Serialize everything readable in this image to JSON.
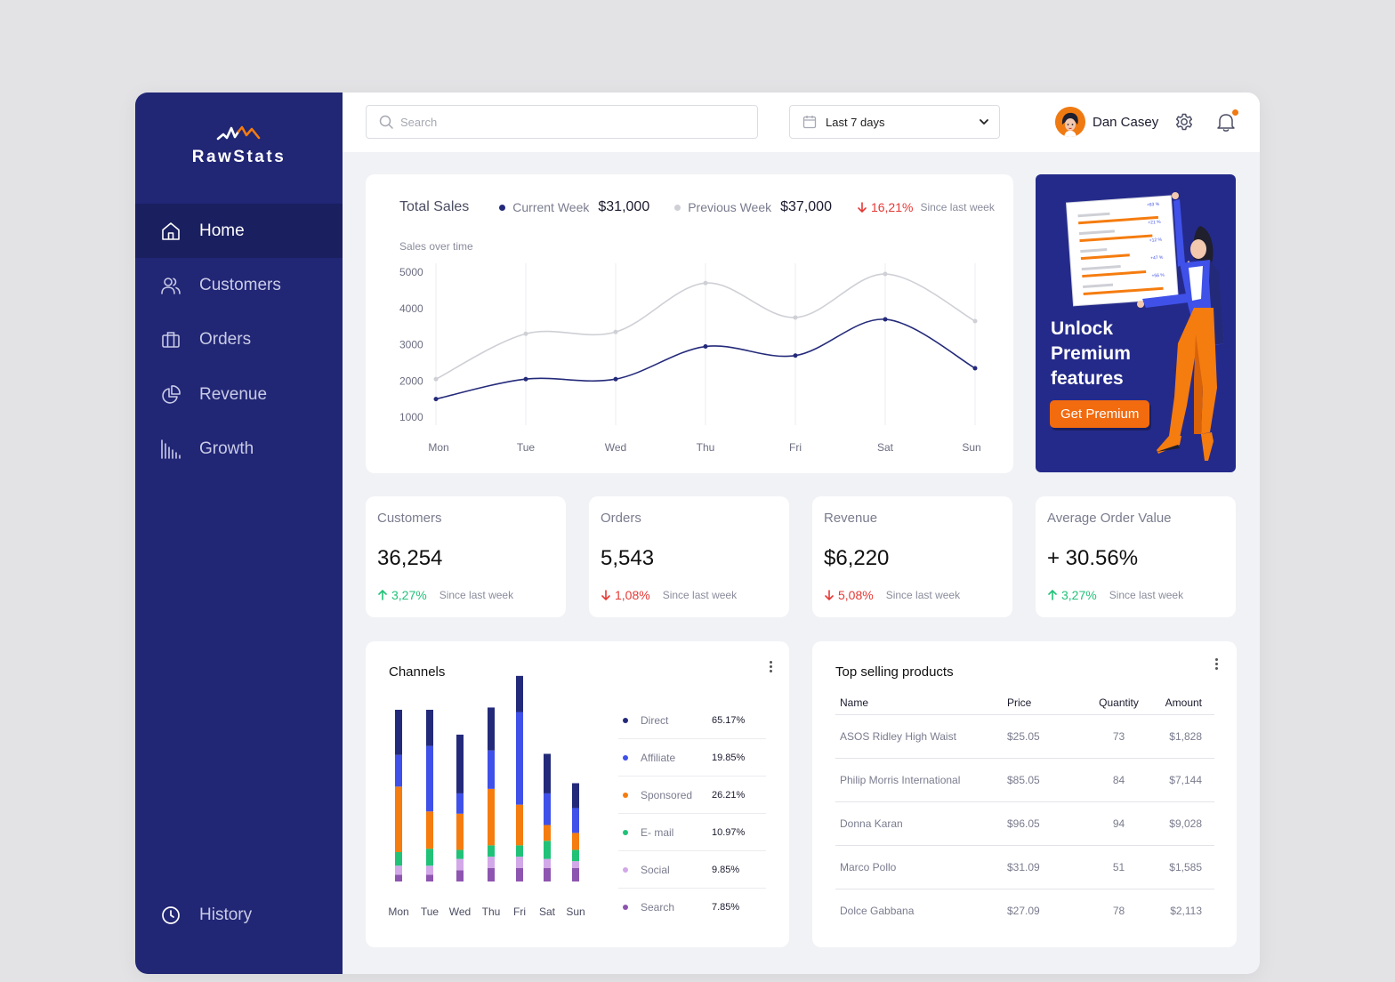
{
  "brand": {
    "name": "RawStats"
  },
  "sidebar": {
    "items": [
      {
        "label": "Home",
        "icon": "home-icon",
        "active": true
      },
      {
        "label": "Customers",
        "icon": "users-icon",
        "active": false
      },
      {
        "label": "Orders",
        "icon": "briefcase-icon",
        "active": false
      },
      {
        "label": "Revenue",
        "icon": "pie-chart-icon",
        "active": false
      },
      {
        "label": "Growth",
        "icon": "bar-chart-icon",
        "active": false
      }
    ],
    "footer_item": {
      "label": "History",
      "icon": "clock-icon"
    }
  },
  "topbar": {
    "search_placeholder": "Search",
    "date_range": "Last 7 days",
    "user_name": "Dan Casey"
  },
  "sales": {
    "title": "Total Sales",
    "current_label": "Current Week",
    "current_value": "$31,000",
    "previous_label": "Previous Week",
    "previous_value": "$37,000",
    "change": "16,21%",
    "change_direction": "down",
    "since": "Since last week",
    "subtitle": "Sales over time"
  },
  "chart_data": [
    {
      "type": "line",
      "x": [
        "Mon",
        "Tue",
        "Wed",
        "Thu",
        "Fri",
        "Sat",
        "Sun"
      ],
      "series": [
        {
          "name": "Current Week",
          "values": [
            1500,
            2050,
            2050,
            2950,
            2700,
            3700,
            2350
          ],
          "color": "#242a7a"
        },
        {
          "name": "Previous Week",
          "values": [
            2050,
            3300,
            3350,
            4700,
            3750,
            4950,
            3650
          ],
          "color": "#cfd0d6"
        }
      ],
      "yticks": [
        5000,
        4000,
        3000,
        2000,
        1000
      ],
      "ylim": [
        1000,
        5000
      ],
      "grid": "vertical"
    },
    {
      "type": "bar",
      "stacked": true,
      "categories": [
        "Mon",
        "Tue",
        "Wed",
        "Thu",
        "Fri",
        "Sat",
        "Sun"
      ],
      "series": [
        {
          "name": "Direct",
          "values": [
            40,
            32,
            52,
            38,
            32,
            35,
            22
          ],
          "color": "#242a7a"
        },
        {
          "name": "Affiliate",
          "values": [
            28,
            58,
            18,
            34,
            82,
            28,
            22
          ],
          "color": "#3f51e8"
        },
        {
          "name": "Sponsored",
          "values": [
            58,
            33,
            32,
            50,
            36,
            14,
            15
          ],
          "color": "#f57c0f"
        },
        {
          "name": "E- mail",
          "values": [
            12,
            15,
            8,
            10,
            10,
            16,
            10
          ],
          "color": "#21c278"
        },
        {
          "name": "Social",
          "values": [
            8,
            8,
            10,
            10,
            10,
            8,
            6
          ],
          "color": "#d2a8e8"
        },
        {
          "name": "Search",
          "values": [
            6,
            6,
            10,
            12,
            12,
            12,
            12
          ],
          "color": "#8e55b0"
        }
      ]
    }
  ],
  "promo": {
    "title_lines": [
      "Unlock",
      "Premium",
      "features"
    ],
    "button": "Get Premium",
    "sheet_labels": [
      "+63 %",
      "+21 %",
      "+12 %",
      "+47 %",
      "+56 %"
    ]
  },
  "stats": [
    {
      "label": "Customers",
      "value": "36,254",
      "change": "3,27%",
      "direction": "up",
      "since": "Since last week"
    },
    {
      "label": "Orders",
      "value": "5,543",
      "change": "1,08%",
      "direction": "down",
      "since": "Since last week"
    },
    {
      "label": "Revenue",
      "value": "$6,220",
      "change": "5,08%",
      "direction": "down",
      "since": "Since last week"
    },
    {
      "label": "Average Order Value",
      "value": "+ 30.56%",
      "change": "3,27%",
      "direction": "up",
      "since": "Since last week"
    }
  ],
  "channels": {
    "title": "Channels",
    "legend": [
      {
        "name": "Direct",
        "pct": "65.17%",
        "color": "#242a7a"
      },
      {
        "name": "Affiliate",
        "pct": "19.85%",
        "color": "#3f51e8"
      },
      {
        "name": "Sponsored",
        "pct": "26.21%",
        "color": "#f57c0f"
      },
      {
        "name": "E- mail",
        "pct": "10.97%",
        "color": "#21c278"
      },
      {
        "name": "Social",
        "pct": "9.85%",
        "color": "#d2a8e8"
      },
      {
        "name": "Search",
        "pct": "7.85%",
        "color": "#8e55b0"
      }
    ]
  },
  "products": {
    "title": "Top selling products",
    "columns": [
      "Name",
      "Price",
      "Quantity",
      "Amount"
    ],
    "rows": [
      [
        "ASOS Ridley High Waist",
        "$25.05",
        "73",
        "$1,828"
      ],
      [
        "Philip Morris International",
        "$85.05",
        "84",
        "$7,144"
      ],
      [
        "Donna Karan",
        "$96.05",
        "94",
        "$9,028"
      ],
      [
        "Marco Pollo",
        "$31.09",
        "51",
        "$1,585"
      ],
      [
        "Dolce  Gabbana",
        "$27.09",
        "78",
        "$2,113"
      ]
    ]
  }
}
